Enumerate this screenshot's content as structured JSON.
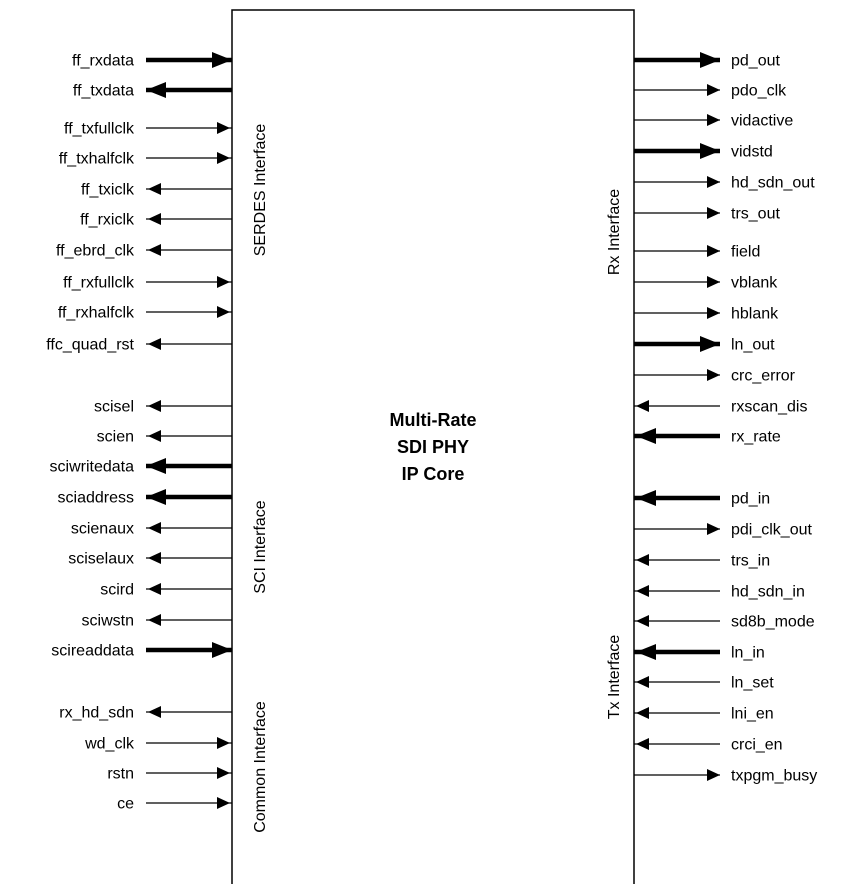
{
  "core_title": [
    "Multi-Rate",
    "SDI PHY",
    "IP Core"
  ],
  "interfaces": {
    "serdes": "SERDES Interface",
    "sci": "SCI Interface",
    "common": "Common Interface",
    "rx": "Rx Interface",
    "tx": "Tx Interface"
  },
  "left_signals": [
    {
      "name": "ff_rxdata",
      "dir": "in",
      "bus": true
    },
    {
      "name": "ff_txdata",
      "dir": "out",
      "bus": true
    },
    {
      "name": "ff_txfullclk",
      "dir": "in",
      "bus": false
    },
    {
      "name": "ff_txhalfclk",
      "dir": "in",
      "bus": false
    },
    {
      "name": "ff_txiclk",
      "dir": "out",
      "bus": false
    },
    {
      "name": "ff_rxiclk",
      "dir": "out",
      "bus": false
    },
    {
      "name": "ff_ebrd_clk",
      "dir": "out",
      "bus": false
    },
    {
      "name": "ff_rxfullclk",
      "dir": "in",
      "bus": false
    },
    {
      "name": "ff_rxhalfclk",
      "dir": "in",
      "bus": false
    },
    {
      "name": "ffc_quad_rst",
      "dir": "out",
      "bus": false
    },
    {
      "name": "scisel",
      "dir": "out",
      "bus": false
    },
    {
      "name": "scien",
      "dir": "out",
      "bus": false
    },
    {
      "name": "sciwritedata",
      "dir": "out",
      "bus": true
    },
    {
      "name": "sciaddress",
      "dir": "out",
      "bus": true
    },
    {
      "name": "scienaux",
      "dir": "out",
      "bus": false
    },
    {
      "name": "sciselaux",
      "dir": "out",
      "bus": false
    },
    {
      "name": "scird",
      "dir": "out",
      "bus": false
    },
    {
      "name": "sciwstn",
      "dir": "out",
      "bus": false
    },
    {
      "name": "scireaddata",
      "dir": "in",
      "bus": true
    },
    {
      "name": "rx_hd_sdn",
      "dir": "out",
      "bus": false
    },
    {
      "name": "wd_clk",
      "dir": "in",
      "bus": false
    },
    {
      "name": "rstn",
      "dir": "in",
      "bus": false
    },
    {
      "name": "ce",
      "dir": "in",
      "bus": false
    }
  ],
  "right_signals": [
    {
      "name": "pd_out",
      "dir": "out",
      "bus": true
    },
    {
      "name": "pdo_clk",
      "dir": "out",
      "bus": false
    },
    {
      "name": "vidactive",
      "dir": "out",
      "bus": false
    },
    {
      "name": "vidstd",
      "dir": "out",
      "bus": true
    },
    {
      "name": "hd_sdn_out",
      "dir": "out",
      "bus": false
    },
    {
      "name": "trs_out",
      "dir": "out",
      "bus": false
    },
    {
      "name": "field",
      "dir": "out",
      "bus": false
    },
    {
      "name": "vblank",
      "dir": "out",
      "bus": false
    },
    {
      "name": "hblank",
      "dir": "out",
      "bus": false
    },
    {
      "name": "ln_out",
      "dir": "out",
      "bus": true
    },
    {
      "name": "crc_error",
      "dir": "out",
      "bus": false
    },
    {
      "name": "rxscan_dis",
      "dir": "in",
      "bus": false
    },
    {
      "name": "rx_rate",
      "dir": "in",
      "bus": true
    },
    {
      "name": "pd_in",
      "dir": "in",
      "bus": true
    },
    {
      "name": "pdi_clk_out",
      "dir": "out",
      "bus": false
    },
    {
      "name": "trs_in",
      "dir": "in",
      "bus": false
    },
    {
      "name": "hd_sdn_in",
      "dir": "in",
      "bus": false
    },
    {
      "name": "sd8b_mode",
      "dir": "in",
      "bus": false
    },
    {
      "name": "ln_in",
      "dir": "in",
      "bus": true
    },
    {
      "name": "ln_set",
      "dir": "in",
      "bus": false
    },
    {
      "name": "lni_en",
      "dir": "in",
      "bus": false
    },
    {
      "name": "crci_en",
      "dir": "in",
      "bus": false
    },
    {
      "name": "txpgm_busy",
      "dir": "out",
      "bus": false
    }
  ]
}
